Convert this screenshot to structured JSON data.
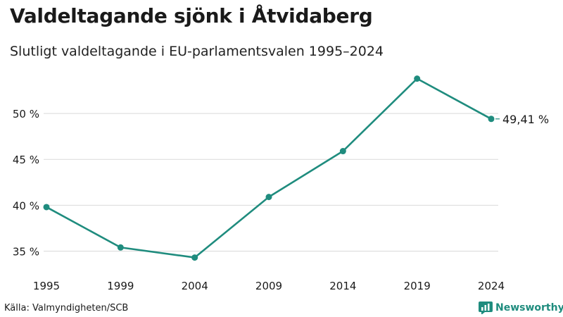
{
  "header": {
    "title": "Valdeltagande sjönk i Åtvidaberg",
    "subtitle": "Slutligt valdeltagande i EU-parlamentsvalen 1995–2024"
  },
  "footer": {
    "source": "Källa: Valmyndigheten/SCB",
    "brand": "Newsworthy"
  },
  "colors": {
    "line": "#1f8c7e",
    "grid": "#d9d9d9",
    "brand": "#1f8c7e"
  },
  "chart_data": {
    "type": "line",
    "title": "Valdeltagande sjönk i Åtvidaberg",
    "subtitle": "Slutligt valdeltagande i EU-parlamentsvalen 1995–2024",
    "xlabel": "",
    "ylabel": "",
    "categories": [
      "1995",
      "1999",
      "2004",
      "2009",
      "2014",
      "2019",
      "2024"
    ],
    "series": [
      {
        "name": "Valdeltagande",
        "values": [
          39.8,
          35.4,
          34.3,
          40.9,
          45.9,
          53.8,
          49.41
        ]
      }
    ],
    "yticks": [
      35,
      40,
      45,
      50
    ],
    "ytick_labels": [
      "35 %",
      "40 %",
      "45 %",
      "50 %"
    ],
    "ylim": [
      33.5,
      55
    ],
    "grid": true,
    "end_label": "49,41 %"
  }
}
